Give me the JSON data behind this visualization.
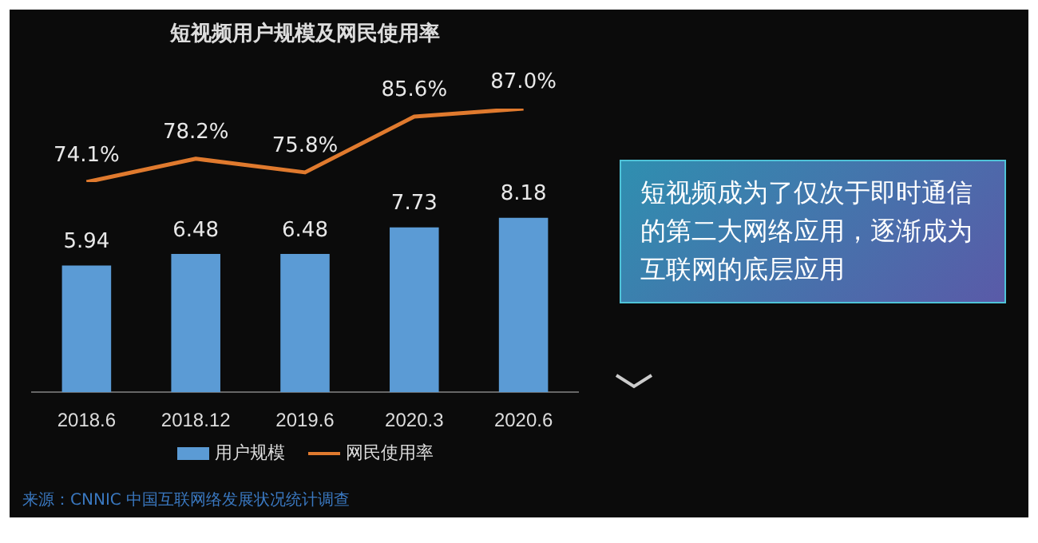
{
  "chart_data": [
    {
      "type": "bar",
      "categories": [
        "2018.6",
        "2018.12",
        "2019.6",
        "2020.3",
        "2020.6"
      ],
      "series": [
        {
          "name": "用户规模",
          "color": "#5b9bd5",
          "values": [
            5.94,
            6.48,
            6.48,
            7.73,
            8.18
          ]
        }
      ],
      "data_labels": true,
      "legend": "bottom",
      "annotations": [
        "短视频成为了仅次于即时通信的第二大网络应用，逐渐成为互联网的底层应用",
        "来源：CNNIC 中国互联网络发展状况统计调查"
      ]
    },
    {
      "type": "line",
      "title": "短视频用户规模及网民使用率",
      "categories": [
        null,
        null,
        null,
        null,
        null
      ],
      "series": [
        {
          "name": "网民使用率",
          "color": "#e07a2e",
          "values": [
            74.1,
            78.2,
            75.8,
            85.6,
            87.0
          ],
          "value_labels": [
            "74.1%",
            "78.2%",
            "75.8%",
            "85.6%",
            "87.0%"
          ]
        }
      ],
      "marker": "none",
      "legend": "bottom"
    }
  ]
}
